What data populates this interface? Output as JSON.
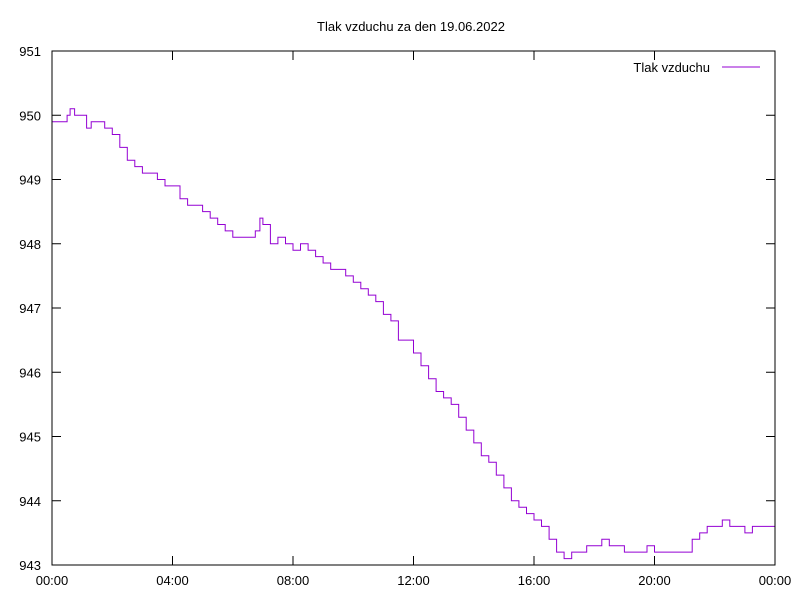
{
  "chart_data": {
    "type": "line",
    "title": "Tlak vzduchu za den 19.06.2022",
    "xlabel": "",
    "ylabel": "",
    "x_tick_labels": [
      "00:00",
      "04:00",
      "08:00",
      "12:00",
      "16:00",
      "20:00",
      "00:00"
    ],
    "y_tick_labels": [
      "943",
      "944",
      "945",
      "946",
      "947",
      "948",
      "949",
      "950",
      "951"
    ],
    "xlim": [
      0,
      24
    ],
    "ylim": [
      943,
      951
    ],
    "grid": false,
    "legend_position": "top-right",
    "series": [
      {
        "name": "Tlak vzduchu",
        "color": "#9400D3",
        "x": [
          0.0,
          0.25,
          0.5,
          0.6,
          0.75,
          1.0,
          1.15,
          1.3,
          1.5,
          1.75,
          2.0,
          2.25,
          2.5,
          2.75,
          3.0,
          3.25,
          3.5,
          3.75,
          4.0,
          4.25,
          4.5,
          4.75,
          5.0,
          5.25,
          5.5,
          5.75,
          6.0,
          6.25,
          6.5,
          6.75,
          6.9,
          7.0,
          7.25,
          7.5,
          7.75,
          8.0,
          8.25,
          8.5,
          8.75,
          9.0,
          9.25,
          9.5,
          9.75,
          10.0,
          10.25,
          10.5,
          10.75,
          11.0,
          11.25,
          11.5,
          11.75,
          12.0,
          12.25,
          12.5,
          12.75,
          13.0,
          13.25,
          13.5,
          13.75,
          14.0,
          14.25,
          14.5,
          14.75,
          15.0,
          15.25,
          15.5,
          15.75,
          16.0,
          16.25,
          16.5,
          16.75,
          17.0,
          17.25,
          17.5,
          17.75,
          18.0,
          18.25,
          18.5,
          18.75,
          19.0,
          19.25,
          19.5,
          19.75,
          20.0,
          20.25,
          20.5,
          20.75,
          21.0,
          21.25,
          21.5,
          21.75,
          22.0,
          22.25,
          22.5,
          22.75,
          23.0,
          23.25,
          23.5,
          23.75,
          24.0
        ],
        "y": [
          949.9,
          949.9,
          950.0,
          950.1,
          950.0,
          950.0,
          949.8,
          949.9,
          949.9,
          949.8,
          949.7,
          949.5,
          949.3,
          949.2,
          949.1,
          949.1,
          949.0,
          948.9,
          948.9,
          948.7,
          948.6,
          948.6,
          948.5,
          948.4,
          948.3,
          948.2,
          948.1,
          948.1,
          948.1,
          948.2,
          948.4,
          948.3,
          948.0,
          948.1,
          948.0,
          947.9,
          948.0,
          947.9,
          947.8,
          947.7,
          947.6,
          947.6,
          947.5,
          947.4,
          947.3,
          947.2,
          947.1,
          946.9,
          946.8,
          946.5,
          946.5,
          946.3,
          946.1,
          945.9,
          945.7,
          945.6,
          945.5,
          945.3,
          945.1,
          944.9,
          944.7,
          944.6,
          944.4,
          944.2,
          944.0,
          943.9,
          943.8,
          943.7,
          943.6,
          943.4,
          943.2,
          943.1,
          943.2,
          943.2,
          943.3,
          943.3,
          943.4,
          943.3,
          943.3,
          943.2,
          943.2,
          943.2,
          943.3,
          943.2,
          943.2,
          943.2,
          943.2,
          943.2,
          943.4,
          943.5,
          943.6,
          943.6,
          943.7,
          943.6,
          943.6,
          943.5,
          943.6,
          943.6,
          943.6,
          943.5
        ]
      }
    ]
  }
}
